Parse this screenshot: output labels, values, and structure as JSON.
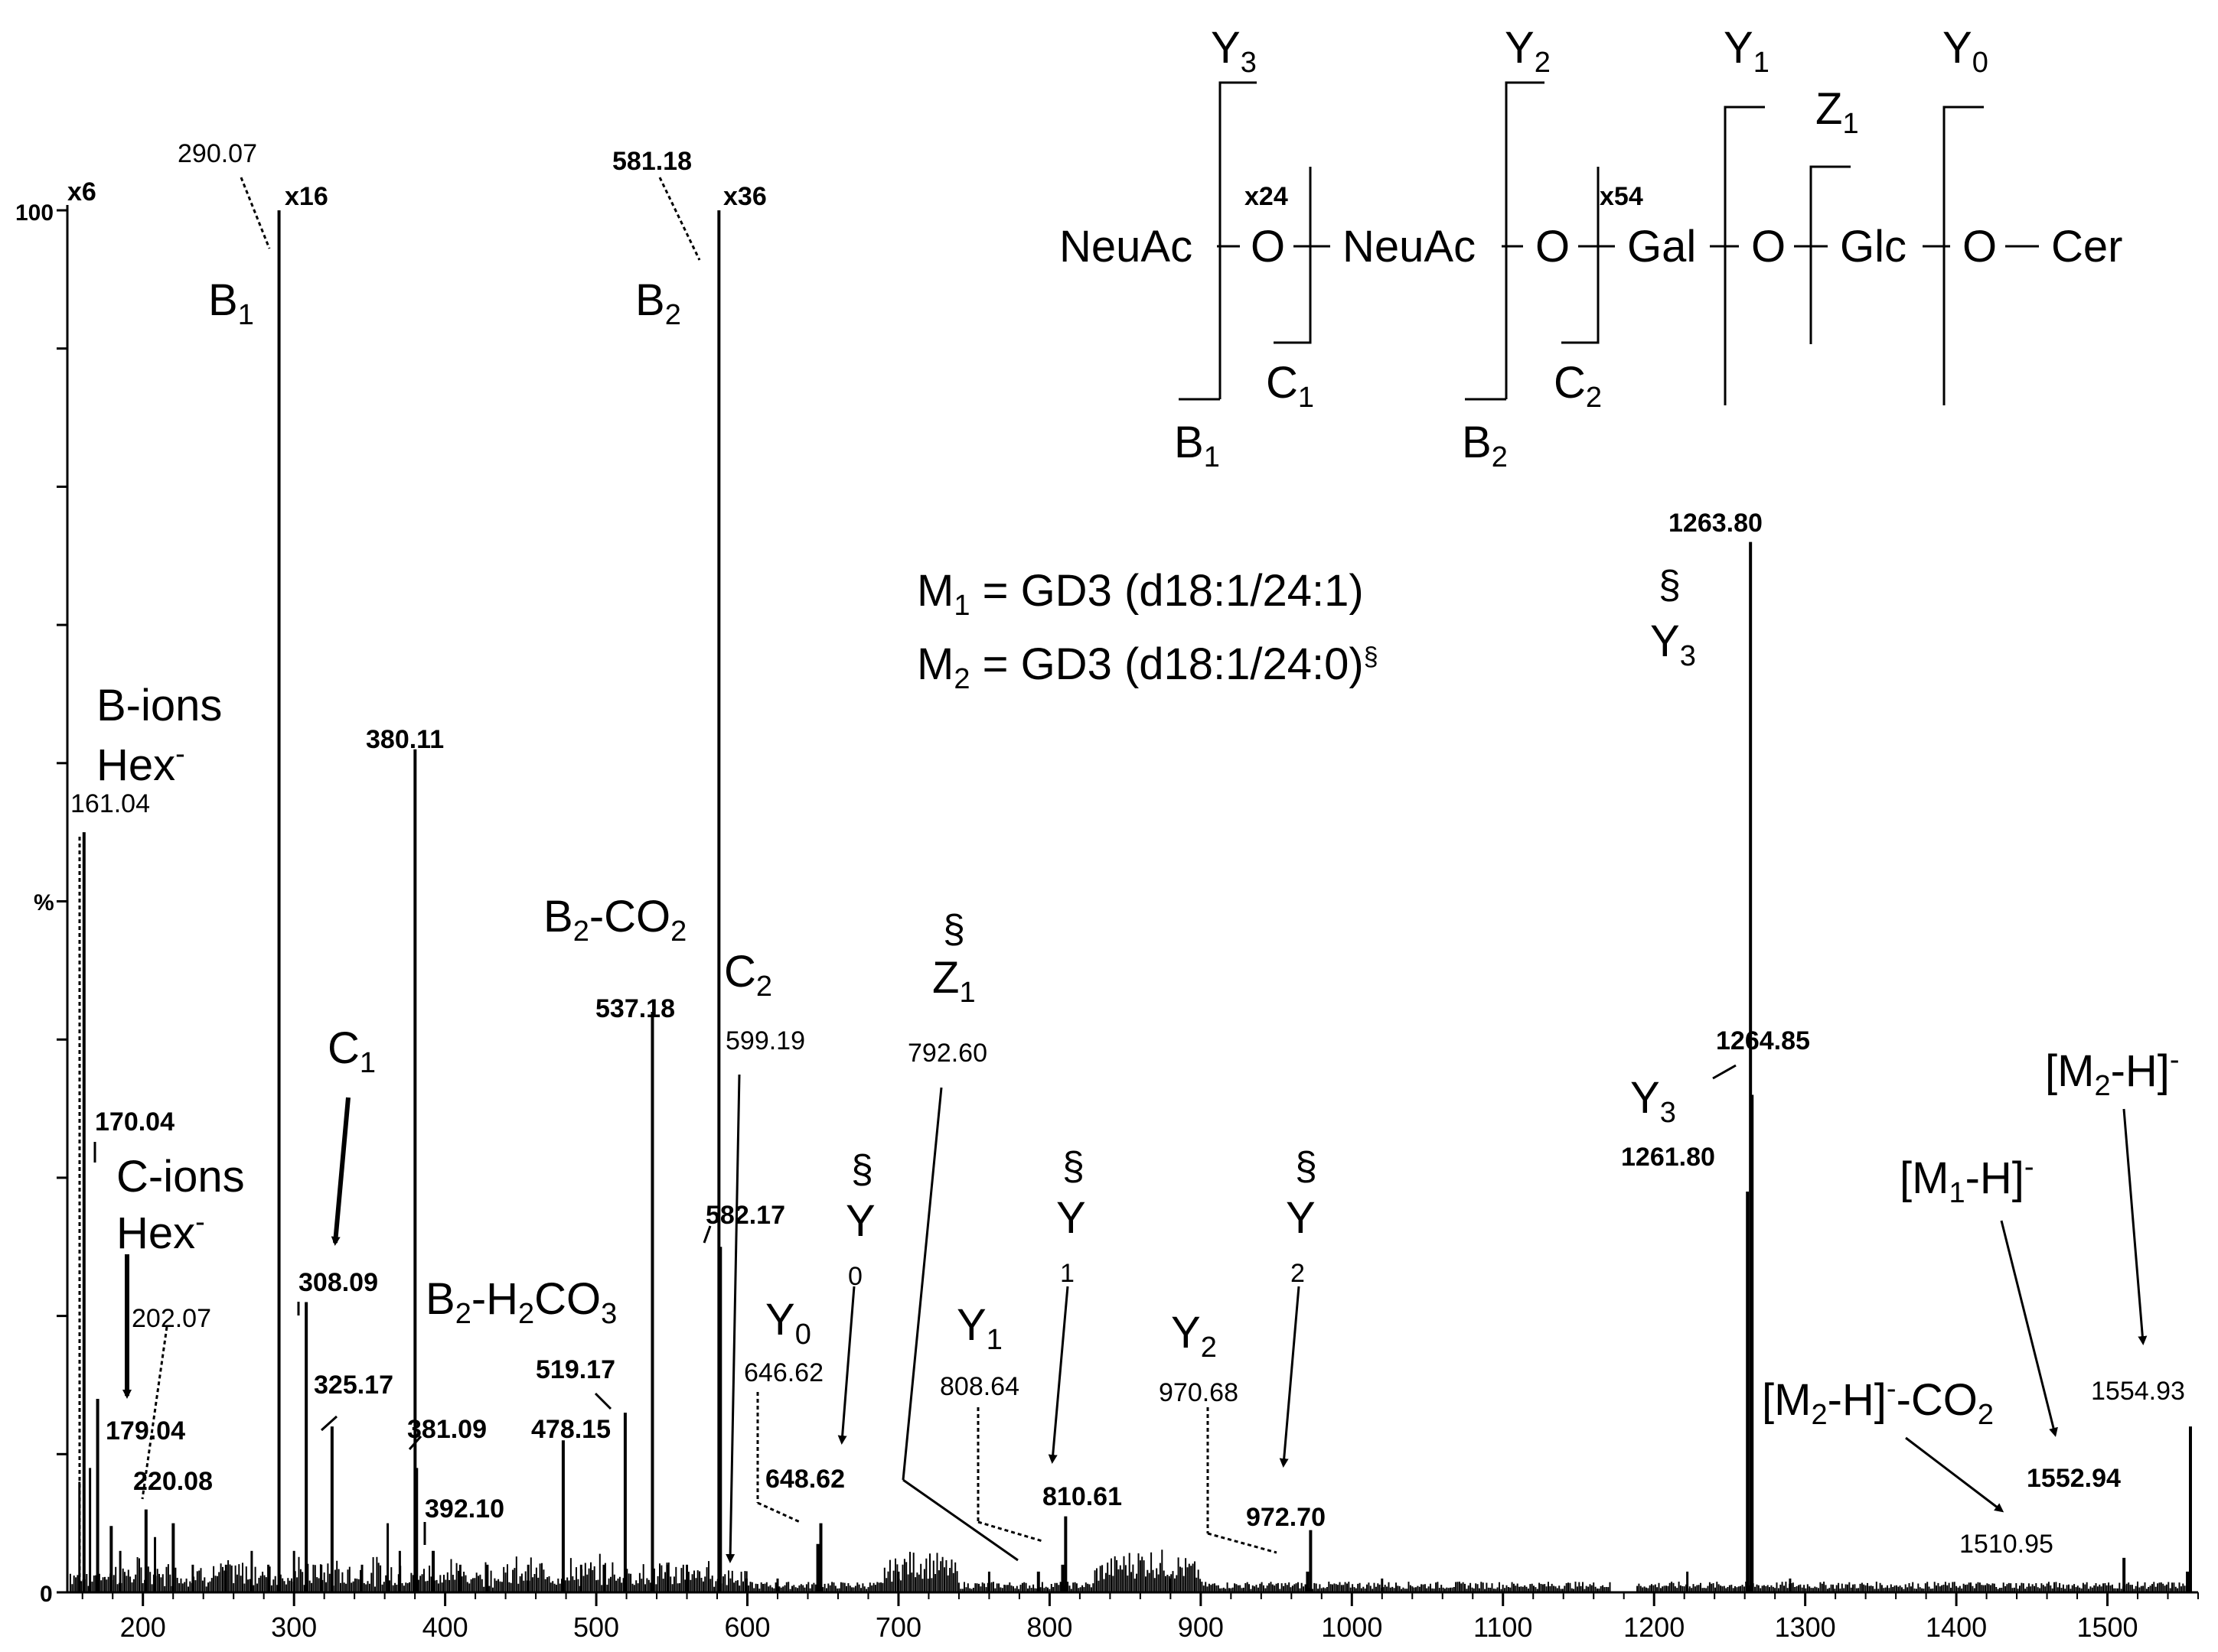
{
  "chart_data": {
    "type": "bar",
    "title": "",
    "xlabel": "",
    "ylabel": "%",
    "xlim": [
      150,
      1560
    ],
    "ylim": [
      0,
      100
    ],
    "x_ticks": [
      "200",
      "300",
      "400",
      "500",
      "600",
      "700",
      "800",
      "900",
      "1000",
      "1100",
      "1200",
      "1300",
      "1400",
      "1500"
    ],
    "y_ticks": [
      "0",
      "100"
    ],
    "zoom_markers": [
      {
        "x": 152,
        "text": "x6"
      },
      {
        "x": 295,
        "text": "x16"
      },
      {
        "x": 590,
        "text": "x36"
      }
    ],
    "peaks": [
      {
        "mz": 161.04,
        "y": 55,
        "label": "161.04"
      },
      {
        "mz": 170.04,
        "y": 14,
        "label": "170.04"
      },
      {
        "mz": 179.04,
        "y": 4.8,
        "label": "179.04"
      },
      {
        "mz": 202.07,
        "y": 6,
        "label": "202.07"
      },
      {
        "mz": 220.08,
        "y": 5,
        "label": "220.08"
      },
      {
        "mz": 290.07,
        "y": 100,
        "label": "290.07"
      },
      {
        "mz": 308.09,
        "y": 21,
        "label": "308.09"
      },
      {
        "mz": 325.17,
        "y": 12,
        "label": "325.17"
      },
      {
        "mz": 380.11,
        "y": 61,
        "label": "380.11"
      },
      {
        "mz": 381.09,
        "y": 9,
        "label": "381.09"
      },
      {
        "mz": 392.1,
        "y": 3,
        "label": "392.10"
      },
      {
        "mz": 478.15,
        "y": 11,
        "label": "478.15"
      },
      {
        "mz": 519.17,
        "y": 13,
        "label": "519.17"
      },
      {
        "mz": 537.18,
        "y": 42,
        "label": "537.18"
      },
      {
        "mz": 581.18,
        "y": 100,
        "label": "581.18"
      },
      {
        "mz": 582.17,
        "y": 25,
        "label": "582.17"
      },
      {
        "mz": 599.19,
        "y": 1,
        "label": "599.19"
      },
      {
        "mz": 646.62,
        "y": 3.5,
        "label": "646.62"
      },
      {
        "mz": 648.62,
        "y": 5,
        "label": "648.62"
      },
      {
        "mz": 792.6,
        "y": 1.5,
        "label": "792.60"
      },
      {
        "mz": 808.64,
        "y": 2,
        "label": "808.64"
      },
      {
        "mz": 810.61,
        "y": 5.5,
        "label": "810.61"
      },
      {
        "mz": 970.68,
        "y": 1.5,
        "label": "970.68"
      },
      {
        "mz": 972.7,
        "y": 4.5,
        "label": "972.70"
      },
      {
        "mz": 1261.8,
        "y": 29,
        "label": "1261.80"
      },
      {
        "mz": 1263.8,
        "y": 76,
        "label": "1263.80"
      },
      {
        "mz": 1264.85,
        "y": 36,
        "label": "1264.85"
      },
      {
        "mz": 1510.95,
        "y": 2.5,
        "label": "1510.95"
      },
      {
        "mz": 1552.94,
        "y": 1.5,
        "label": "1552.94"
      },
      {
        "mz": 1554.93,
        "y": 12,
        "label": "1554.93"
      }
    ],
    "minor_peaks": [
      [
        158,
        8
      ],
      [
        165,
        9
      ],
      [
        185,
        3
      ],
      [
        208,
        4
      ],
      [
        233,
        2
      ],
      [
        255,
        2
      ],
      [
        272,
        3
      ],
      [
        283,
        2
      ],
      [
        300,
        3
      ],
      [
        318,
        2
      ],
      [
        345,
        2
      ],
      [
        362,
        5
      ],
      [
        370,
        3
      ],
      [
        410,
        2
      ],
      [
        428,
        2
      ],
      [
        455,
        2
      ],
      [
        490,
        2
      ],
      [
        505,
        2
      ],
      [
        547,
        2
      ],
      [
        560,
        2
      ],
      [
        620,
        1
      ],
      [
        700,
        1.5
      ],
      [
        760,
        1.5
      ],
      [
        880,
        1
      ],
      [
        1020,
        1
      ],
      [
        1222,
        1.5
      ],
      [
        1290,
        1
      ]
    ],
    "ion_labels": {
      "B1": "B1",
      "B2": "B2",
      "C1": "C1",
      "C2": "C2",
      "B2_CO2": "B2-CO2",
      "B2_H2CO3": "B2-H2CO3",
      "Y0": "Y0",
      "Y1": "Y1",
      "Y2": "Y2",
      "Y3": "Y3",
      "Z1": "Z1",
      "M1_H": "[M1-H]-",
      "M2_H": "[M2-H]-",
      "M2_H_CO2": "[M2-H]--CO2",
      "B_ions": "B-ions",
      "C_ions": "C-ions",
      "hex": "Hex-",
      "section": "§"
    },
    "annotations": {
      "m1": "M1 = GD3 (d18:1/24:1)",
      "m2": "M2 = GD3 (d18:1/24:0)§"
    },
    "structure": {
      "units": [
        "NeuAc",
        "O",
        "NeuAc",
        "O",
        "Gal",
        "O",
        "Glc",
        "O",
        "Cer"
      ],
      "zoom_24": "x24",
      "zoom_54": "x54"
    }
  }
}
